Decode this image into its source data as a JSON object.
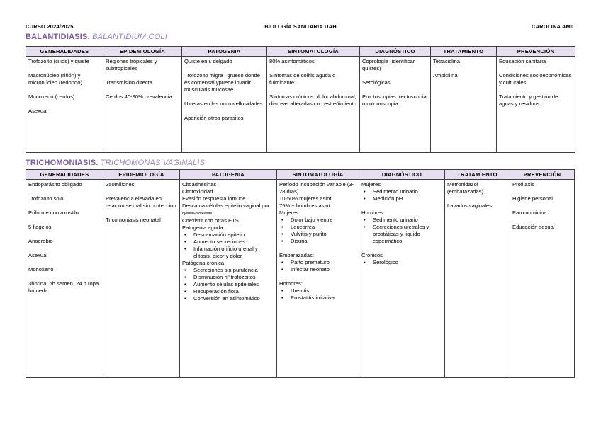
{
  "page_header": {
    "left": "CURSO 2024/2025",
    "center": "BIOLOGÍA SANITARIA UAH",
    "right": "CAROLINA AMIL"
  },
  "colors": {
    "accent_purple": "#7b58a8",
    "accent_purple_light": "#9a83c6",
    "table_header_bg": "#e6dff0",
    "table_border": "#3f3f3f"
  },
  "sections": [
    {
      "id": "balantidiasis",
      "title_disease": "BALANTIDIASIS.",
      "title_species": "BALANTIDIUM COLI",
      "columns": [
        "GENERALIDADES",
        "EPIDEMIOLOGÍA",
        "PATOGENIA",
        "SINTOMATOLOGÍA",
        "DIAGNÓSTICO",
        "TRATAMIENTO",
        "PREVENCIÓN"
      ],
      "cells": [
        [
          {
            "t": "p",
            "x": "Trofozoito (cilios) y quiste"
          },
          {
            "t": "s"
          },
          {
            "t": "p",
            "x": "Macronúcleo (riñón) y micronúcleo (redondo)"
          },
          {
            "t": "s"
          },
          {
            "t": "p",
            "x": "Monoxeno (cerdos)"
          },
          {
            "t": "s"
          },
          {
            "t": "p",
            "x": "Asexual"
          }
        ],
        [
          {
            "t": "p",
            "x": "Regiones tropicales y subtropicales"
          },
          {
            "t": "s"
          },
          {
            "t": "p",
            "x": "Transmision directa"
          },
          {
            "t": "s"
          },
          {
            "t": "p",
            "x": "Cerdos 40-90% prevalencia"
          }
        ],
        [
          {
            "t": "p",
            "x": "Quiste en i. delgado"
          },
          {
            "t": "s"
          },
          {
            "t": "p",
            "x": "Trofozoito migra i grueso donde es comensal ypuede invadir muscularis mucosae"
          },
          {
            "t": "s"
          },
          {
            "t": "p",
            "x": "Ulceras en las microvellosidades"
          },
          {
            "t": "s"
          },
          {
            "t": "p",
            "x": "Aparición otros parasitos"
          }
        ],
        [
          {
            "t": "p",
            "x": "80% asintomáticos"
          },
          {
            "t": "s"
          },
          {
            "t": "p",
            "x": "Síntomas de colitis aguda o fulminante."
          },
          {
            "t": "s"
          },
          {
            "t": "p",
            "x": "Síntomas crónicos: dolor abdominal, diarreas alteradas con estreñimiento"
          }
        ],
        [
          {
            "t": "p",
            "x": "Coprología (identificar quistes)"
          },
          {
            "t": "s"
          },
          {
            "t": "p",
            "x": "Serológicas"
          },
          {
            "t": "s"
          },
          {
            "t": "p",
            "x": "Proctoscopias: rectoscopia o colonoscopia"
          }
        ],
        [
          {
            "t": "p",
            "x": "Tetraciclina"
          },
          {
            "t": "s"
          },
          {
            "t": "p",
            "x": "Ampicilina"
          }
        ],
        [
          {
            "t": "p",
            "x": "Educación sanitaria"
          },
          {
            "t": "s"
          },
          {
            "t": "p",
            "x": "Condiciones socioeconómicas y culturales"
          },
          {
            "t": "s"
          },
          {
            "t": "p",
            "x": "Tratamiento y gestión de aguas y residuos"
          }
        ]
      ]
    },
    {
      "id": "trichomoniasis",
      "title_disease": "TRICHOMONIASIS.",
      "title_species": "TRICHOMONAS VAGINALIS",
      "columns": [
        "GENERALIDADES",
        "EPIDEMIOLOGÍA",
        "PATOGENIA",
        "SINTOMATOLOGÍA",
        "DIAGNÓSTICO",
        "TRATAMIENTO",
        "PREVENCIÓN"
      ],
      "cells": [
        [
          {
            "t": "p",
            "x": "Endoparásito obligado"
          },
          {
            "t": "s"
          },
          {
            "t": "p",
            "x": "Trofozoito solo"
          },
          {
            "t": "s"
          },
          {
            "t": "p",
            "x": "Priforme con axostilo"
          },
          {
            "t": "s"
          },
          {
            "t": "p",
            "x": "5 flagelos"
          },
          {
            "t": "s"
          },
          {
            "t": "p",
            "x": "Anaerobio"
          },
          {
            "t": "s"
          },
          {
            "t": "p",
            "x": "Asexual"
          },
          {
            "t": "s"
          },
          {
            "t": "p",
            "x": "Monoxeno"
          },
          {
            "t": "s"
          },
          {
            "t": "p",
            "x": "3horina, 6h semen, 24 h ropa húmeda"
          }
        ],
        [
          {
            "t": "p",
            "x": "250millones"
          },
          {
            "t": "s"
          },
          {
            "t": "p",
            "x": "Prevalencia elevada en relación sexual sin protección"
          },
          {
            "t": "s"
          },
          {
            "t": "p",
            "x": "Tricomoniasis neonatal"
          }
        ],
        [
          {
            "t": "p",
            "x": "Citoadhesinas"
          },
          {
            "t": "p",
            "x": "Citotoxicidad"
          },
          {
            "t": "p",
            "x": "Evasión respuesta inmune"
          },
          {
            "t": "ps",
            "x": "Descama células epitelio vaginal por ",
            "small": "cystein-proteasas"
          },
          {
            "t": "p",
            "x": "Coexistir con otras ETS"
          },
          {
            "t": "p",
            "x": "Patogenia aguda:"
          },
          {
            "t": "b",
            "x": "Descamación epitelio"
          },
          {
            "t": "b",
            "x": "Aumento secreciones"
          },
          {
            "t": "b",
            "x": "Infamación orificio uretral y clitosis, picor y dolor"
          },
          {
            "t": "p",
            "x": "Patógena crónica"
          },
          {
            "t": "b",
            "x": "Secreciones sin purulencia"
          },
          {
            "t": "b",
            "x": "Disminución nº trofozoitos"
          },
          {
            "t": "b",
            "x": "Aumento células epiteliales"
          },
          {
            "t": "b",
            "x": "Recuperación flora"
          },
          {
            "t": "b",
            "x": "Conversión en asintomático"
          }
        ],
        [
          {
            "t": "p",
            "x": "Período incubación variable (3-28 días)"
          },
          {
            "t": "p",
            "x": "10-50% mujeres asint"
          },
          {
            "t": "p",
            "x": "75% + hombres asint"
          },
          {
            "t": "p",
            "x": "Mujeres:"
          },
          {
            "t": "b",
            "x": "Dolor bajo vientre"
          },
          {
            "t": "b",
            "x": "Leucorrea"
          },
          {
            "t": "b",
            "x": "Vulvitis y purito"
          },
          {
            "t": "b",
            "x": "Disuria"
          },
          {
            "t": "s"
          },
          {
            "t": "p",
            "x": "Embarazadas:"
          },
          {
            "t": "b",
            "x": "Parto prematuro"
          },
          {
            "t": "b",
            "x": "Infectar neonato"
          },
          {
            "t": "s"
          },
          {
            "t": "p",
            "x": "Hombres:"
          },
          {
            "t": "b",
            "x": "Uretritis"
          },
          {
            "t": "b",
            "x": "Prostatitis irritativa"
          }
        ],
        [
          {
            "t": "p",
            "x": "Mujeres"
          },
          {
            "t": "b",
            "x": "Sedimento urinario"
          },
          {
            "t": "b",
            "x": "Medición pH"
          },
          {
            "t": "s"
          },
          {
            "t": "p",
            "x": "Hombres"
          },
          {
            "t": "b",
            "x": "Sedimento urinario"
          },
          {
            "t": "b",
            "x": "Secreciones uretrales y prostáticas y liquido espermático"
          },
          {
            "t": "s"
          },
          {
            "t": "p",
            "x": "Crónicos"
          },
          {
            "t": "b",
            "x": "Serológico"
          }
        ],
        [
          {
            "t": "p",
            "x": "Metronidazol (embarazadas)"
          },
          {
            "t": "s"
          },
          {
            "t": "p",
            "x": "Lavados vaginales"
          }
        ],
        [
          {
            "t": "p",
            "x": "Profilaxis"
          },
          {
            "t": "s"
          },
          {
            "t": "p",
            "x": "Higiene personal"
          },
          {
            "t": "s"
          },
          {
            "t": "p",
            "x": "Paromomicina"
          },
          {
            "t": "s"
          },
          {
            "t": "p",
            "x": "Educación sexual"
          }
        ]
      ]
    }
  ]
}
